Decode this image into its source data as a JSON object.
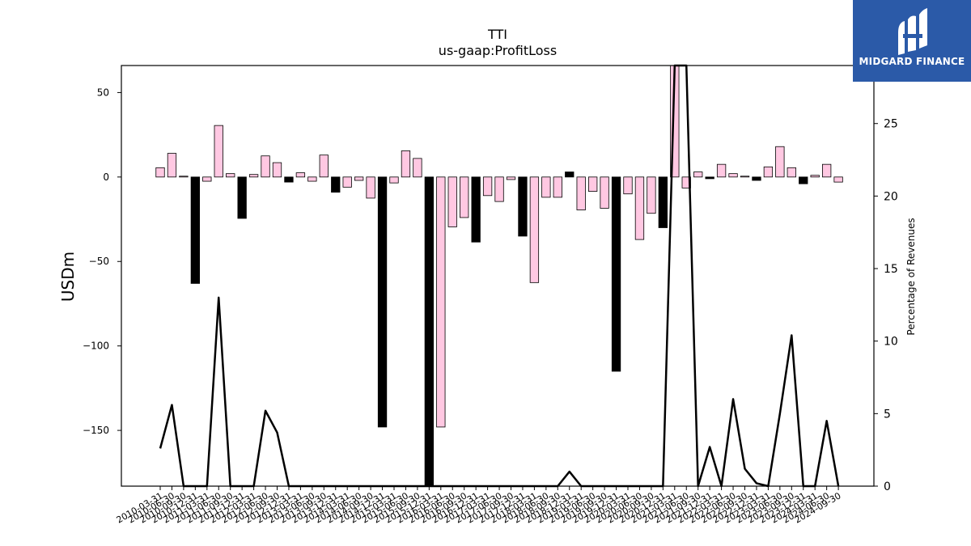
{
  "chart_data": {
    "type": "bar",
    "title": "TTI",
    "subtitle": "us-gaap:ProfitLoss",
    "ylabel": "USDm",
    "y2label": "Percentage of Revenues",
    "ylim": [
      -183,
      66
    ],
    "y2lim": [
      0,
      29
    ],
    "yticks": [
      50,
      0,
      -50,
      -100,
      -150
    ],
    "y2ticks": [
      0,
      5,
      10,
      15,
      20,
      25
    ],
    "categories": [
      "2010-03-31",
      "2010-06-30",
      "2010-09-30",
      "2010-12-31",
      "2011-03-31",
      "2011-06-30",
      "2011-09-30",
      "2011-12-31",
      "2012-03-31",
      "2012-06-30",
      "2012-09-30",
      "2012-12-31",
      "2013-03-31",
      "2013-06-30",
      "2013-09-30",
      "2013-12-31",
      "2014-03-31",
      "2014-06-30",
      "2014-09-30",
      "2014-12-31",
      "2015-03-31",
      "2015-06-30",
      "2015-09-30",
      "2015-12-31",
      "2016-03-31",
      "2016-06-30",
      "2016-09-30",
      "2016-12-31",
      "2017-03-31",
      "2017-06-30",
      "2017-09-30",
      "2017-12-31",
      "2018-03-31",
      "2018-06-30",
      "2018-09-30",
      "2018-12-31",
      "2019-03-31",
      "2019-06-30",
      "2019-09-30",
      "2019-12-31",
      "2020-03-31",
      "2020-06-30",
      "2020-09-30",
      "2020-12-31",
      "2021-03-31",
      "2021-06-30",
      "2021-09-30",
      "2021-12-31",
      "2022-03-31",
      "2022-06-30",
      "2022-09-30",
      "2022-12-31",
      "2023-03-31",
      "2023-06-30",
      "2023-09-30",
      "2023-12-31",
      "2024-03-31",
      "2024-06-30",
      "2024-09-30"
    ],
    "xtick_labels": [
      "2010-03-31",
      "2010-06-30",
      "2010-09-30",
      "2010-12-31",
      "2011-03-31",
      "2011-06-30",
      "2011-09-30",
      "2011-12-31",
      "2012-03-31",
      "2012-06-30",
      "2012-09-30",
      "2012-12-31",
      "2013-03-31",
      "2013-06-30",
      "2013-09-30",
      "2013-12-31",
      "2014-03-31",
      "2014-06-30",
      "2014-09-30",
      "2014-12-31",
      "2015-03-31",
      "2015-06-30",
      "2015-09-30",
      "2015-12-31",
      "2016-03-31",
      "2016-06-30",
      "2016-09-30",
      "2016-12-31",
      "2017-03-31",
      "2017-06-30",
      "2017-09-30",
      "2017-12-31",
      "2018-03-31",
      "2018-06-30",
      "2018-09-30",
      "2018-12-31",
      "2019-03-31",
      "2019-06-30",
      "2019-09-30",
      "2019-12-31",
      "2020-03-31",
      "2020-06-30",
      "2020-09-30",
      "2020-12-31",
      "2021-03-31",
      "2021-06-30",
      "2021-09-30",
      "2021-12-31",
      "2022-03-31",
      "2022-06-30",
      "2022-09-30",
      "2022-12-31",
      "2023-03-31",
      "2023-06-30",
      "2023-09-30",
      "2023-12-31",
      "2024-03-31",
      "2024-06-30",
      "2024-09-30"
    ],
    "values": [
      5.5,
      14,
      0.5,
      -63,
      -2.5,
      30.5,
      2,
      -24.5,
      1.5,
      12.5,
      8.5,
      -3,
      2.5,
      -2.5,
      13,
      -9,
      -6,
      -2,
      -12.5,
      -148,
      -3.5,
      15.5,
      11,
      -183,
      -148,
      -29.5,
      -24,
      -38.5,
      -11,
      -14.5,
      -1.5,
      -35,
      -62.5,
      -12,
      -12,
      3,
      -19.5,
      -8.5,
      -18.5,
      -115,
      -10,
      -37,
      -21.5,
      -30,
      66,
      -6.5,
      3,
      -1,
      7.5,
      2,
      0.5,
      -2,
      6,
      18,
      5.5,
      -4,
      1,
      7.5,
      -3
    ],
    "series": [
      {
        "name": "",
        "type": "line",
        "axis": "secondary",
        "values": [
          2.6,
          5.6,
          0,
          0,
          0,
          13,
          0,
          0,
          0,
          5.2,
          3.7,
          0,
          0,
          0,
          0,
          0,
          0,
          0,
          0,
          0,
          0,
          0,
          0,
          0,
          0,
          0,
          0,
          0,
          0,
          0,
          0,
          0,
          0,
          0,
          0,
          1.0,
          0,
          0,
          0,
          0,
          0,
          0,
          0,
          0,
          29,
          29,
          0,
          2.7,
          0,
          6.0,
          1.2,
          0.2,
          0,
          5.0,
          10.4,
          0,
          0,
          4.5,
          0
        ]
      }
    ],
    "grid": false,
    "legend": "none"
  },
  "logo": {
    "text": "MIDGARD FINANCE",
    "icon": "midgard-logo-icon",
    "color": "#2b5aa8"
  },
  "colors": {
    "positive_bar": "#ffc8e2",
    "negative_bar": "#000000",
    "line": "#000000"
  }
}
